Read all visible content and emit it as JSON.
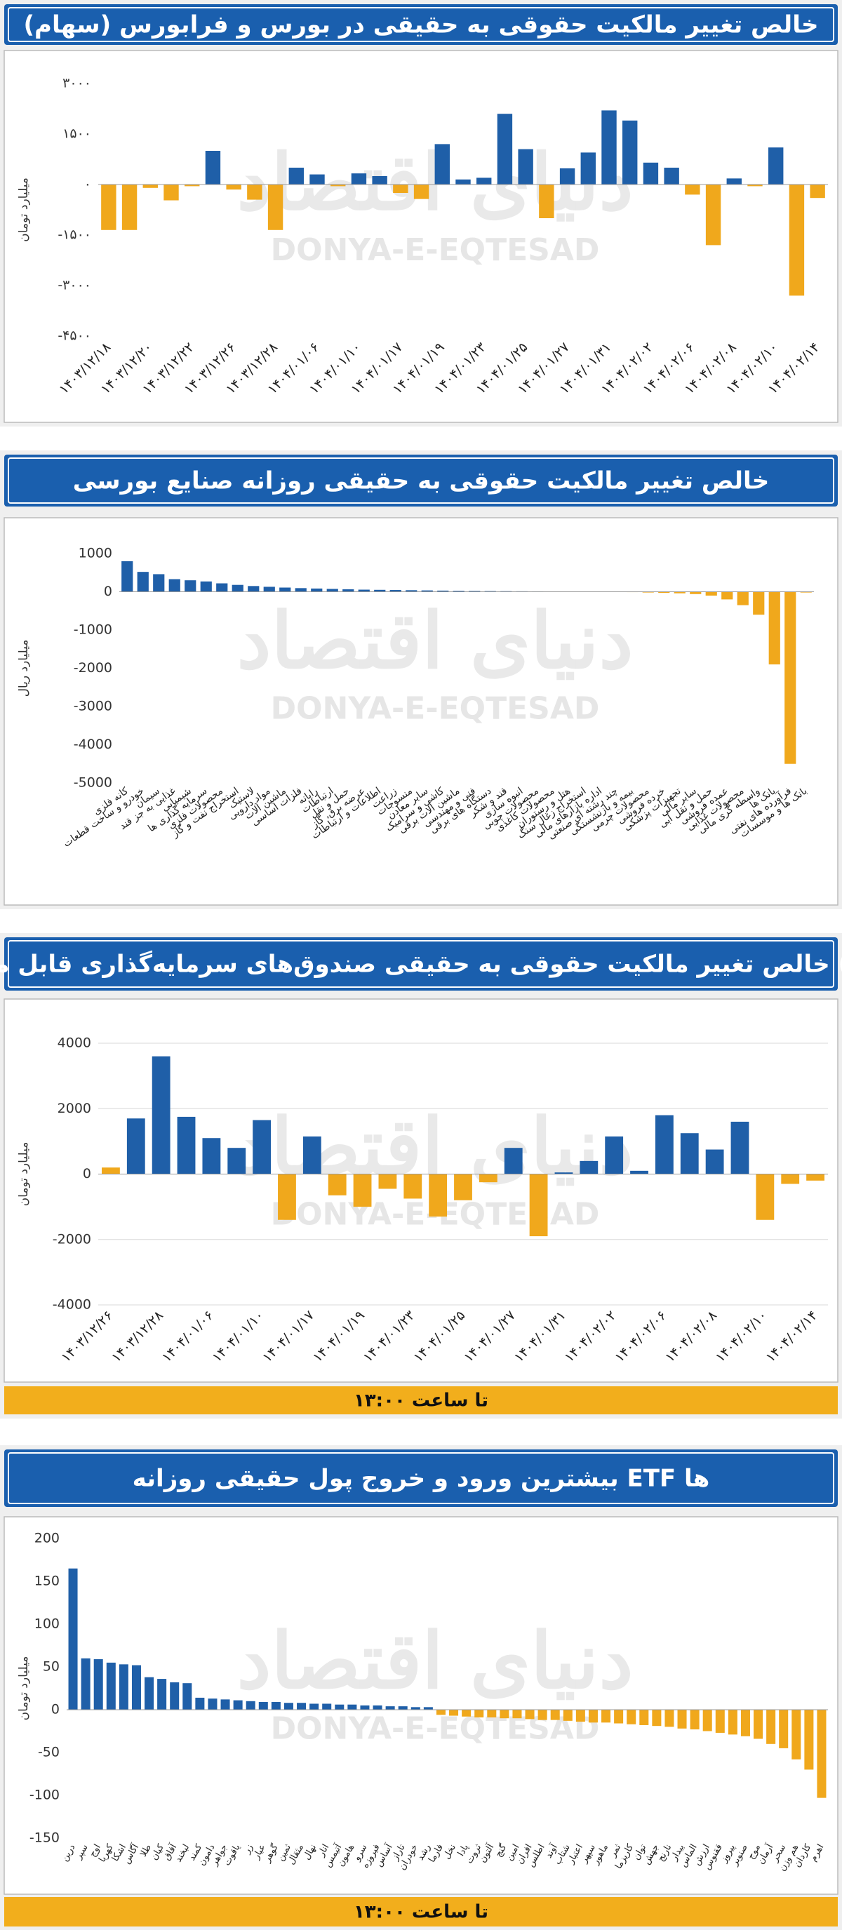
{
  "watermark": {
    "logo": "دنیای اقتصاد",
    "text": "DONYA-E-EQTESAD"
  },
  "chart_data": [
    {
      "type": "bar",
      "title": "خالص تغییر مالکیت حقوقی به حقیقی در بورس و فرابورس (سهام)",
      "y_label": "میلیارد تومان",
      "color": "#1f5fa8",
      "negative_color": "#f0a81c",
      "grid": false,
      "ylim": [
        -4500,
        3000
      ],
      "yticks": [
        {
          "value": 3000,
          "label": "۳۰۰۰"
        },
        {
          "value": 1500,
          "label": "۱۵۰۰"
        },
        {
          "value": 0,
          "label": "۰"
        },
        {
          "value": -1500,
          "label": "-۱۵۰۰"
        },
        {
          "value": -3000,
          "label": "-۳۰۰۰"
        },
        {
          "value": -4500,
          "label": "-۴۵۰۰"
        }
      ],
      "categories": [
        "۱۴۰۳/۱۲/۱۸",
        null,
        "۱۴۰۳/۱۲/۲۰",
        null,
        "۱۴۰۳/۱۲/۲۲",
        null,
        "۱۴۰۳/۱۲/۲۶",
        null,
        "۱۴۰۳/۱۲/۲۸",
        null,
        "۱۴۰۴/۰۱/۰۶",
        null,
        "۱۴۰۴/۰۱/۱۰",
        null,
        "۱۴۰۴/۰۱/۱۷",
        null,
        "۱۴۰۴/۰۱/۱۹",
        null,
        "۱۴۰۴/۰۱/۲۳",
        null,
        "۱۴۰۴/۰۱/۲۵",
        null,
        "۱۴۰۴/۰۱/۲۷",
        null,
        "۱۴۰۴/۰۱/۳۱",
        null,
        "۱۴۰۴/۰۲/۰۲",
        null,
        "۱۴۰۴/۰۲/۰۶",
        null,
        "۱۴۰۴/۰۲/۰۸",
        null,
        "۱۴۰۴/۰۲/۱۰",
        null,
        "۱۴۰۴/۰۲/۱۴"
      ],
      "values": [
        -1350,
        -1350,
        -100,
        -470,
        -50,
        1000,
        -150,
        -450,
        -1350,
        500,
        300,
        -50,
        330,
        250,
        -250,
        -430,
        1200,
        150,
        200,
        2100,
        1050,
        -1000,
        480,
        950,
        2200,
        1900,
        650,
        500,
        -300,
        -1800,
        180,
        -50,
        1100,
        -3300,
        -400
      ]
    },
    {
      "type": "bar",
      "title": "خالص تغییر مالکیت حقوقی به حقیقی روزانه صنایع بورسی",
      "y_label": "میلیارد ریال",
      "color": "#1f5fa8",
      "negative_color": "#f0a81c",
      "grid": false,
      "ylim": [
        -5000,
        1000
      ],
      "yticks": [
        1000,
        0,
        -1000,
        -2000,
        -3000,
        -4000,
        -5000
      ],
      "categories": [
        "کانه فلزی",
        "خودرو و ساخت قطعات",
        "سیمان",
        "غذایی به جز قند",
        "شیمیایی",
        "سرمایه گذاری ها",
        "محصولات فلزی",
        "استخراج نفت و گاز",
        "لاستیک",
        "مواد دارویی",
        "ماشین آلات",
        "فلزات اساسی",
        "رایانه",
        "ارتباطات",
        "حمل و نقل",
        "عرضه برق، گاز",
        "اطلاعات و ارتباطات",
        "زراعت",
        "منسوجات",
        "سایر معادن",
        "کاشی و سرامیک",
        "ماشین آلات برقی",
        "فنی و مهندسی",
        "دستگاه های برقی",
        "قند و شکر",
        "انبوه سازی",
        "محصولات چوبی",
        "محصولات کاغذی",
        "هتل و رستوران",
        "استخراج زغال سنگ",
        "اداره بازارهای مالی",
        "چند رشته ای صنعتی",
        "بیمه و بازنشستگی",
        "محصولات چرمی",
        "خرده فروشی",
        "تجهیزات پزشکی",
        "سایر مالی",
        "حمل و نقل آبی",
        "عمده فروشی",
        "محصولات غذایی",
        "واسطه گری مالی",
        "بانک ها",
        "فرآورده های نفتی",
        "بانک ها و موسسات"
      ],
      "values": [
        800,
        520,
        460,
        330,
        300,
        270,
        220,
        180,
        150,
        130,
        110,
        95,
        85,
        75,
        65,
        55,
        50,
        45,
        40,
        35,
        30,
        25,
        22,
        18,
        15,
        12,
        10,
        8,
        6,
        4,
        2,
        -5,
        -10,
        -20,
        -30,
        -40,
        -60,
        -100,
        -200,
        -350,
        -600,
        -1900,
        -4500,
        -20
      ]
    },
    {
      "type": "bar",
      "title": "خالص تغییر مالکیت حقوقی به حقیقی صندوق‌های سرمایه‌گذاری قابل معامله (ETF)",
      "y_label": "میلیارد تومان",
      "color": "#1f5fa8",
      "negative_color": "#f0a81c",
      "grid": true,
      "ylim": [
        -4000,
        4000
      ],
      "yticks": [
        4000,
        2000,
        0,
        -2000,
        -4000
      ],
      "categories": [
        "۱۴۰۳/۱۲/۲۶",
        null,
        "۱۴۰۳/۱۲/۲۸",
        null,
        "۱۴۰۴/۰۱/۰۶",
        null,
        "۱۴۰۴/۰۱/۱۰",
        null,
        "۱۴۰۴/۰۱/۱۷",
        null,
        "۱۴۰۴/۰۱/۱۹",
        null,
        "۱۴۰۴/۰۱/۲۳",
        null,
        "۱۴۰۴/۰۱/۲۵",
        null,
        "۱۴۰۴/۰۱/۲۷",
        null,
        "۱۴۰۴/۰۱/۳۱",
        null,
        "۱۴۰۴/۰۲/۰۲",
        null,
        "۱۴۰۴/۰۲/۰۶",
        null,
        "۱۴۰۴/۰۲/۰۸",
        null,
        "۱۴۰۴/۰۲/۱۰",
        null,
        "۱۴۰۴/۰۲/۱۴"
      ],
      "values": [
        200,
        1700,
        3600,
        1750,
        1100,
        800,
        1650,
        -1400,
        1150,
        -650,
        -1000,
        -450,
        -750,
        -1300,
        -800,
        -250,
        800,
        -1900,
        50,
        400,
        1150,
        100,
        1800,
        1250,
        750,
        1600,
        -1400,
        -300,
        -200
      ],
      "colors": [
        "#f0a81c",
        "#1f5fa8",
        "#1f5fa8",
        "#1f5fa8",
        "#1f5fa8",
        "#1f5fa8",
        "#1f5fa8",
        "#f0a81c",
        "#1f5fa8",
        "#f0a81c",
        "#f0a81c",
        "#f0a81c",
        "#f0a81c",
        "#f0a81c",
        "#f0a81c",
        "#f0a81c",
        "#1f5fa8",
        "#f0a81c",
        "#1f5fa8",
        "#1f5fa8",
        "#1f5fa8",
        "#1f5fa8",
        "#1f5fa8",
        "#1f5fa8",
        "#1f5fa8",
        "#1f5fa8",
        "#f0a81c",
        "#f0a81c",
        "#f0a81c"
      ],
      "footnote": "تا ساعت ۱۳:۰۰"
    },
    {
      "type": "bar",
      "title": "بیشترین ورود و خروج پول حقیقی روزانه ETF ها",
      "y_label": "میلیارد تومان",
      "color": "#1f5fa8",
      "negative_color": "#f0a81c",
      "grid": false,
      "ylim": [
        -150,
        200
      ],
      "yticks": [
        200,
        150,
        100,
        50,
        0,
        -50,
        -100,
        -150
      ],
      "categories": [
        "درین",
        "سپر",
        "اوج",
        "کهربا",
        "اشکا",
        "آگاس",
        "طلا",
        "کیان",
        "آفاق",
        "لبخند",
        "کمند",
        "دامون",
        "جواهر",
        "یاقوت",
        "زر",
        "عیار",
        "گوهر",
        "ثمین",
        "مثقال",
        "نهال",
        "انار",
        "آتیمس",
        "هامون",
        "سرو",
        "فیروزه",
        "آساس",
        "تاراز",
        "خودران",
        "رشد",
        "فارما",
        "نخل",
        "پادا",
        "ثروت",
        "آلتون",
        "گنج",
        "امین",
        "افران",
        "اطلس",
        "آوند",
        "شتاب",
        "اعتبار",
        "سپهر",
        "ماهور",
        "ثمر",
        "کاریزما",
        "توان",
        "جهش",
        "نارنج",
        "بیدار",
        "الماس",
        "ارزش",
        "ققنوس",
        "پیروز",
        "صنوبر",
        "موج",
        "آرمان",
        "سحر",
        "هم وزن",
        "کاردان",
        "اهرم"
      ],
      "values": [
        165,
        60,
        59,
        55,
        53,
        52,
        38,
        36,
        32,
        31,
        14,
        13,
        12,
        11,
        10,
        9,
        9,
        8,
        8,
        7,
        7,
        6,
        6,
        5,
        5,
        4,
        4,
        3,
        3,
        -6,
        -7,
        -8,
        -9,
        -9,
        -10,
        -10,
        -11,
        -12,
        -12,
        -13,
        -14,
        -15,
        -15,
        -16,
        -17,
        -18,
        -19,
        -20,
        -22,
        -23,
        -25,
        -27,
        -29,
        -31,
        -34,
        -40,
        -45,
        -58,
        -70,
        -103
      ],
      "footnote": "تا ساعت ۱۳:۰۰"
    }
  ]
}
